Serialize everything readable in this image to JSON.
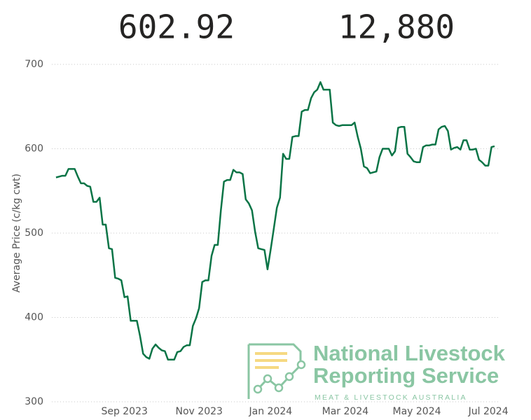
{
  "cards": [
    "602.92",
    "12,880"
  ],
  "logo": {
    "line1": "National Livestock",
    "line2": "Reporting Service",
    "tagline": "MEAT & LIVESTOCK AUSTRALIA"
  },
  "chart_data": {
    "type": "line",
    "y_label": "Average Price (c/kg cwt)",
    "ylim": [
      300,
      700
    ],
    "yticks": [
      300,
      400,
      500,
      600,
      700
    ],
    "grid": true,
    "categories": [
      null,
      null,
      null,
      null,
      null,
      null,
      null,
      null,
      null,
      null,
      null,
      null,
      null,
      null,
      null,
      null,
      null,
      null,
      null,
      null,
      null,
      null,
      "Sep 2023",
      null,
      null,
      null,
      null,
      null,
      null,
      null,
      null,
      null,
      null,
      null,
      null,
      null,
      null,
      null,
      null,
      null,
      null,
      null,
      null,
      null,
      null,
      null,
      "Nov 2023",
      null,
      null,
      null,
      null,
      null,
      null,
      null,
      null,
      null,
      null,
      null,
      null,
      null,
      null,
      null,
      null,
      null,
      null,
      null,
      null,
      null,
      null,
      "Jan 2024",
      null,
      null,
      null,
      null,
      null,
      null,
      null,
      null,
      null,
      null,
      null,
      null,
      null,
      null,
      null,
      null,
      null,
      null,
      null,
      null,
      null,
      null,
      null,
      "Mar 2024",
      null,
      null,
      null,
      null,
      null,
      null,
      null,
      null,
      null,
      null,
      null,
      null,
      null,
      null,
      null,
      null,
      null,
      null,
      null,
      null,
      null,
      null,
      "May 2024",
      null,
      null,
      null,
      null,
      null,
      null,
      null,
      null,
      null,
      null,
      null,
      null,
      null,
      null,
      null,
      null,
      null,
      null,
      null,
      null,
      null,
      null,
      "Jul 2024",
      null,
      null
    ],
    "series": [
      {
        "name": "Average Price",
        "color": "#0a7446",
        "values": [
          566,
          567,
          568,
          568,
          576,
          576,
          576,
          567,
          559,
          559,
          556,
          555,
          537,
          537,
          542,
          510,
          510,
          482,
          481,
          447,
          446,
          444,
          424,
          425,
          396,
          396,
          396,
          378,
          357,
          353,
          351,
          363,
          368,
          364,
          361,
          360,
          350,
          350,
          350,
          359,
          360,
          365,
          367,
          367,
          390,
          399,
          411,
          442,
          444,
          444,
          473,
          486,
          486,
          527,
          561,
          563,
          563,
          575,
          572,
          572,
          570,
          540,
          535,
          527,
          502,
          482,
          481,
          480,
          457,
          480,
          505,
          530,
          542,
          594,
          588,
          588,
          614,
          615,
          615,
          644,
          646,
          646,
          660,
          667,
          670,
          679,
          670,
          670,
          670,
          631,
          628,
          627,
          628,
          628,
          628,
          628,
          631,
          614,
          600,
          579,
          577,
          571,
          572,
          573,
          590,
          600,
          600,
          600,
          592,
          597,
          625,
          626,
          626,
          594,
          590,
          585,
          584,
          584,
          602,
          604,
          604,
          605,
          605,
          623,
          626,
          627,
          621,
          599,
          601,
          602,
          599,
          610,
          610,
          599,
          599,
          600,
          587,
          584,
          580,
          580,
          602,
          603
        ]
      }
    ]
  }
}
